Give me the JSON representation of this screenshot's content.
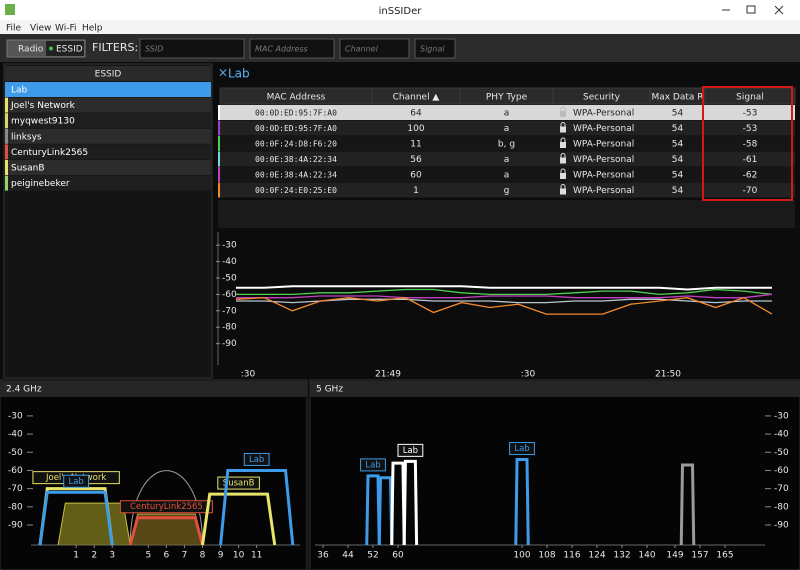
{
  "window": {
    "title": "inSSIDer",
    "menu": [
      "File",
      "View",
      "Wi-Fi",
      "Help"
    ]
  },
  "toolbar": {
    "buttons": [
      "Radio",
      "ESSID"
    ],
    "filters_label": "FILTERS:",
    "filters": [
      "SSID",
      "MAC Address",
      "Channel",
      "Signal"
    ]
  },
  "essid_list": {
    "header": "ESSID",
    "items": [
      {
        "name": "Lab",
        "color": "#3d9be9"
      },
      {
        "name": "Joel's Network",
        "color": "#e8e36a"
      },
      {
        "name": "myqwest9130",
        "color": "#d9d86a"
      },
      {
        "name": "linksys",
        "color": "#8a8a8a"
      },
      {
        "name": "CenturyLink2565",
        "color": "#e0503c"
      },
      {
        "name": "SusanB",
        "color": "#e8e36a"
      },
      {
        "name": "peiginebeker",
        "color": "#9ad26a"
      }
    ]
  },
  "details": {
    "title": "Lab",
    "columns": [
      "MAC Address",
      "Channel ▲",
      "PHY Type",
      "Security",
      "Max Data R",
      "Signal"
    ],
    "rows": [
      {
        "color": "#ffffff",
        "cells": [
          "00:0D:ED:95:7F:A0",
          64,
          "a",
          "WPA-Personal",
          54,
          -53
        ]
      },
      {
        "color": "#a040d0",
        "cells": [
          "00:0D:ED:95:7F:A0",
          100,
          "a",
          "WPA-Personal",
          54,
          -53
        ]
      },
      {
        "color": "#50d050",
        "cells": [
          "00:0F:24:D8:F6:20",
          11,
          "b, g",
          "WPA-Personal",
          54,
          -58
        ]
      },
      {
        "color": "#70d8e0",
        "cells": [
          "00:0E:38:4A:22:34",
          56,
          "a",
          "WPA-Personal",
          54,
          -61
        ]
      },
      {
        "color": "#c040c0",
        "cells": [
          "00:0E:38:4A:22:34",
          60,
          "a",
          "WPA-Personal",
          54,
          -62
        ]
      },
      {
        "color": "#f08a30",
        "cells": [
          "00:0F:24:E0:25:E0",
          1,
          "g",
          "WPA-Personal",
          54,
          -70
        ]
      }
    ]
  },
  "time_graph": {
    "type": "line",
    "ylim": [
      -103,
      -22
    ],
    "yticks": [
      -30,
      -40,
      -50,
      -60,
      -70,
      -80,
      -90
    ],
    "xlabels": [
      ":30",
      "21:49",
      ":30",
      "21:50"
    ],
    "series": [
      {
        "color": "#ffffff",
        "values": [
          -56,
          -56,
          -55,
          -55,
          -55,
          -55,
          -55,
          -55,
          -55,
          -56,
          -56,
          -56,
          -56,
          -56,
          -56,
          -56,
          -57,
          -56,
          -56,
          -56
        ]
      },
      {
        "color": "#50d050",
        "values": [
          -60,
          -60,
          -60,
          -59,
          -59,
          -58,
          -57,
          -57,
          -59,
          -60,
          -60,
          -60,
          -59,
          -58,
          -58,
          -60,
          -59,
          -57,
          -58,
          -60
        ]
      },
      {
        "color": "#c040c0",
        "values": [
          -62,
          -62,
          -62,
          -61,
          -61,
          -61,
          -62,
          -62,
          -62,
          -61,
          -61,
          -61,
          -62,
          -62,
          -62,
          -62,
          -61,
          -62,
          -62,
          -60
        ]
      },
      {
        "color": "#b8c8d0",
        "values": [
          -64,
          -64,
          -65,
          -64,
          -63,
          -63,
          -63,
          -64,
          -64,
          -64,
          -65,
          -65,
          -64,
          -64,
          -63,
          -63,
          -64,
          -65,
          -64,
          -64
        ]
      },
      {
        "color": "#f08a30",
        "values": [
          -63,
          -62,
          -70,
          -64,
          -62,
          -64,
          -62,
          -71,
          -65,
          -68,
          -66,
          -72,
          -72,
          -72,
          -66,
          -64,
          -62,
          -68,
          -62,
          -72
        ]
      }
    ]
  },
  "spectrum_24": {
    "type": "spectrum",
    "title": "2.4 GHz",
    "ylim": [
      -101,
      -24
    ],
    "yticks": [
      -30,
      -40,
      -50,
      -60,
      -70,
      -80,
      -90
    ],
    "xlim": [
      -1.5,
      13.4
    ],
    "channels": [
      1,
      2,
      3,
      5,
      6,
      7,
      8,
      9,
      10,
      11
    ],
    "networks": [
      {
        "channel": 2,
        "signal": -78,
        "color": "#c8c040",
        "fill": "#8a8420"
      },
      {
        "channel": 6,
        "signal": -84,
        "color": "#c8a040",
        "fill": "#7a6420"
      },
      {
        "channel": 6,
        "signal": -63,
        "color": "#9a9a9a",
        "arc": true
      },
      {
        "channel": 1,
        "signal": -70,
        "color": "#e8e36a",
        "label": "Joel's Network"
      },
      {
        "channel": 1,
        "signal": -72,
        "color": "#3d9be9",
        "label": "Lab"
      },
      {
        "channel": 6,
        "signal": -86,
        "color": "#e0503c",
        "label": "CenturyLink2565"
      },
      {
        "channel": 10,
        "signal": -73,
        "color": "#e8e36a",
        "label": "SusanB"
      },
      {
        "channel": 11,
        "signal": -60,
        "color": "#3d9be9",
        "label": "Lab"
      }
    ]
  },
  "spectrum_5": {
    "type": "spectrum",
    "title": "5 GHz",
    "ylim": [
      -101,
      -24
    ],
    "yticks": [
      -30,
      -40,
      -50,
      -60,
      -70,
      -80,
      -90
    ],
    "channels": [
      36,
      44,
      52,
      60,
      100,
      108,
      116,
      124,
      132,
      140,
      149,
      157,
      165
    ],
    "networks": [
      {
        "channel": 153,
        "signal": -57,
        "color": "#9a9a9a"
      },
      {
        "channel": 52,
        "signal": -63,
        "color": "#3d9be9",
        "label": "Lab"
      },
      {
        "channel": 56,
        "signal": -64,
        "color": "#3d9be9"
      },
      {
        "channel": 60,
        "signal": -56,
        "color": "#ffffff"
      },
      {
        "channel": 64,
        "signal": -55,
        "color": "#ffffff",
        "label": "Lab"
      },
      {
        "channel": 100,
        "signal": -54,
        "color": "#3d9be9",
        "label": "Lab"
      }
    ]
  }
}
